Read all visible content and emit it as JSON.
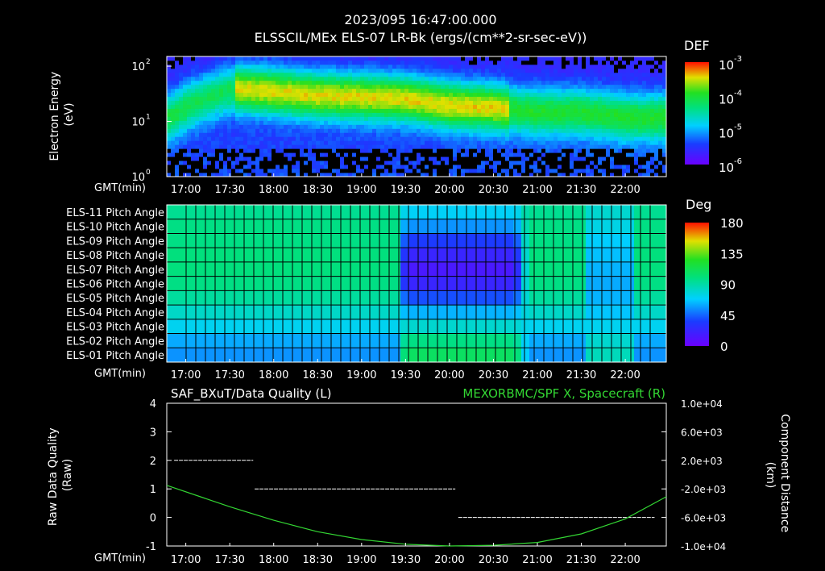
{
  "header": {
    "timestamp": "2023/095 16:47:00.000",
    "subtitle": "ELSSCIL/MEx ELS-07 LR-Bk  (ergs/(cm**2-sr-sec-eV))"
  },
  "time_axis": {
    "label": "GMT(min)",
    "ticks": [
      "17:00",
      "17:30",
      "18:00",
      "18:30",
      "19:00",
      "19:30",
      "20:00",
      "20:30",
      "21:00",
      "21:30",
      "22:00"
    ],
    "range_minutes": [
      16.77,
      22.47
    ]
  },
  "colors": {
    "background": "#000000",
    "frame": "#ffffff",
    "spacecraft_series": "#33d633",
    "quality_series": "#ffffff",
    "right_title": "#33d633"
  },
  "chart_data": [
    {
      "type": "heatmap",
      "panel": "energy-spectrogram",
      "ylabel": "Electron Energy\n(eV)",
      "y_scale": "log",
      "ylim": [
        1,
        150
      ],
      "y_ticks": [
        {
          "value": 1,
          "base": "10",
          "exp": "0"
        },
        {
          "value": 10,
          "base": "10",
          "exp": "1"
        },
        {
          "value": 100,
          "base": "10",
          "exp": "2"
        }
      ],
      "colorbar": {
        "label": "DEF",
        "scale": "log",
        "ticks": [
          {
            "base": "10",
            "exp": "-3"
          },
          {
            "base": "10",
            "exp": "-4"
          },
          {
            "base": "10",
            "exp": "-5"
          },
          {
            "base": "10",
            "exp": "-6"
          }
        ]
      },
      "peak_energy_eV": [
        {
          "t": "16:50",
          "e": 12
        },
        {
          "t": "17:35",
          "e": 40
        },
        {
          "t": "18:00",
          "e": 35
        },
        {
          "t": "18:30",
          "e": 30
        },
        {
          "t": "19:00",
          "e": 28
        },
        {
          "t": "19:30",
          "e": 26
        },
        {
          "t": "20:00",
          "e": 20
        },
        {
          "t": "20:30",
          "e": 18
        },
        {
          "t": "21:00",
          "e": 15
        },
        {
          "t": "21:30",
          "e": 15
        },
        {
          "t": "22:00",
          "e": 12
        }
      ]
    },
    {
      "type": "heatmap",
      "panel": "pitch-angle",
      "rows": [
        "ELS-11 Pitch Angle",
        "ELS-10 Pitch Angle",
        "ELS-09 Pitch Angle",
        "ELS-08 Pitch Angle",
        "ELS-07 Pitch Angle",
        "ELS-06 Pitch Angle",
        "ELS-05 Pitch Angle",
        "ELS-04 Pitch Angle",
        "ELS-03 Pitch Angle",
        "ELS-02 Pitch Angle",
        "ELS-01 Pitch Angle"
      ],
      "colorbar": {
        "label": "Deg",
        "ticks": [
          "180",
          "135",
          "90",
          "45",
          "0"
        ],
        "range": [
          0,
          180
        ]
      },
      "values_deg_early": [
        95,
        98,
        98,
        100,
        100,
        98,
        92,
        82,
        72,
        60,
        55
      ],
      "values_deg_mid": [
        70,
        55,
        35,
        22,
        15,
        22,
        40,
        62,
        80,
        98,
        108
      ],
      "values_deg_late": [
        80,
        75,
        68,
        65,
        62,
        60,
        62,
        66,
        72,
        80,
        85
      ]
    },
    {
      "type": "line",
      "panel": "quality-and-position",
      "left_title": "SAF_BXuT/Data Quality (L)",
      "right_title": "MEXORBMC/SPF X, Spacecraft (R)",
      "ylabel_left": "Raw Data Quality\n(Raw)",
      "ylabel_right": "Component Distance\n(km)",
      "ylim_left": [
        -1,
        4
      ],
      "y_ticks_left": [
        "4",
        "3",
        "2",
        "1",
        "0",
        "-1"
      ],
      "ylim_right": [
        -10000,
        10000
      ],
      "y_ticks_right": [
        "1.0e+04",
        "6.0e+03",
        "2.0e+03",
        "-2.0e+03",
        "-6.0e+03",
        "-1.0e+04"
      ],
      "series": [
        {
          "name": "SAF_BXuT/Data Quality",
          "axis": "left",
          "segments": [
            {
              "t_start": "16:52",
              "t_end": "17:46",
              "value": 2
            },
            {
              "t_start": "17:47",
              "t_end": "20:04",
              "value": 1
            },
            {
              "t_start": "20:06",
              "t_end": "22:20",
              "value": 0
            }
          ]
        },
        {
          "name": "MEXORBMC/SPF X, Spacecraft",
          "axis": "right",
          "points": [
            {
              "t": "16:47",
              "v": -1500
            },
            {
              "t": "17:30",
              "v": -4500
            },
            {
              "t": "18:00",
              "v": -6400
            },
            {
              "t": "18:30",
              "v": -8000
            },
            {
              "t": "19:00",
              "v": -9100
            },
            {
              "t": "19:30",
              "v": -9750
            },
            {
              "t": "20:00",
              "v": -10000
            },
            {
              "t": "20:30",
              "v": -9900
            },
            {
              "t": "21:00",
              "v": -9500
            },
            {
              "t": "21:30",
              "v": -8300
            },
            {
              "t": "22:00",
              "v": -6200
            },
            {
              "t": "22:28",
              "v": -3100
            }
          ]
        }
      ]
    }
  ]
}
